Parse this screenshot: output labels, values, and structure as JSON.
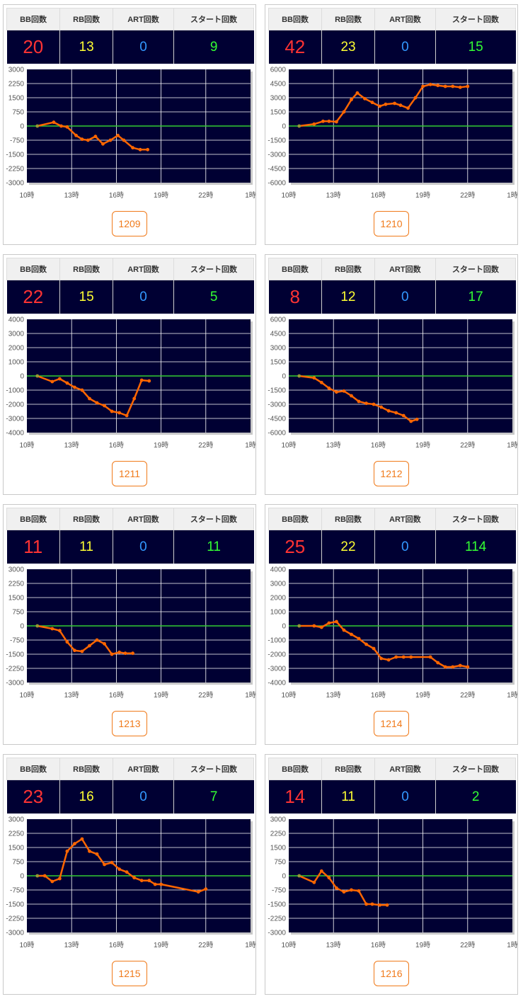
{
  "headers": {
    "bb": "BB回数",
    "rb": "RB回数",
    "art": "ART回数",
    "start": "スタート回数"
  },
  "x_ticks": [
    "10時",
    "13時",
    "16時",
    "19時",
    "22時",
    "1時"
  ],
  "colors": {
    "header_bg": "#f0f0f0",
    "value_bg": "#000033",
    "plot_bg": "#000033",
    "bb": "#ff3333",
    "rb": "#ffff33",
    "art": "#3399ff",
    "start": "#33ff33",
    "line": "#ff6600",
    "zero": "#33cc33",
    "button": "#f07a1a"
  },
  "machines": [
    {
      "id": "1209",
      "bb": "20",
      "rb": "13",
      "art": "0",
      "start": "9",
      "chart_data": {
        "type": "line",
        "y_ticks": [
          "3000",
          "2250",
          "1500",
          "750",
          "0",
          "-750",
          "-1500",
          "-2250",
          "-3000"
        ],
        "ylim": [
          -3000,
          3000
        ],
        "xlim": [
          10,
          25
        ],
        "x": [
          10.7,
          11.8,
          12.3,
          12.7,
          13.3,
          13.7,
          14.1,
          14.6,
          15.1,
          15.6,
          16.1,
          16.5,
          17.1,
          17.6,
          18.1
        ],
        "y": [
          0,
          200,
          0,
          -50,
          -500,
          -700,
          -750,
          -550,
          -950,
          -750,
          -500,
          -750,
          -1150,
          -1250,
          -1250
        ]
      }
    },
    {
      "id": "1210",
      "bb": "42",
      "rb": "23",
      "art": "0",
      "start": "15",
      "chart_data": {
        "type": "line",
        "y_ticks": [
          "6000",
          "4500",
          "3000",
          "1500",
          "0",
          "-1500",
          "-3000",
          "-4500",
          "-6000"
        ],
        "ylim": [
          -6000,
          6000
        ],
        "xlim": [
          10,
          25
        ],
        "x": [
          10.7,
          11.7,
          12.3,
          12.7,
          13.2,
          13.7,
          14.2,
          14.6,
          15.1,
          15.6,
          16.1,
          16.5,
          17.1,
          17.5,
          18.0,
          18.5,
          19.0,
          19.5,
          20.0,
          20.5,
          21.0,
          21.5,
          22.0
        ],
        "y": [
          0,
          200,
          500,
          500,
          450,
          1500,
          2800,
          3500,
          2900,
          2500,
          2100,
          2300,
          2400,
          2200,
          1900,
          3000,
          4200,
          4400,
          4300,
          4200,
          4200,
          4100,
          4200
        ]
      }
    },
    {
      "id": "1211",
      "bb": "22",
      "rb": "15",
      "art": "0",
      "start": "5",
      "chart_data": {
        "type": "line",
        "y_ticks": [
          "4000",
          "3000",
          "2000",
          "1000",
          "0",
          "-1000",
          "-2000",
          "-3000",
          "-4000"
        ],
        "ylim": [
          -4000,
          4000
        ],
        "xlim": [
          10,
          25
        ],
        "x": [
          10.7,
          11.7,
          12.2,
          12.7,
          13.2,
          13.7,
          14.2,
          14.7,
          15.2,
          15.7,
          16.2,
          16.7,
          17.2,
          17.7,
          18.2
        ],
        "y": [
          0,
          -400,
          -200,
          -500,
          -800,
          -1000,
          -1600,
          -1900,
          -2100,
          -2500,
          -2600,
          -2800,
          -1600,
          -300,
          -350
        ]
      }
    },
    {
      "id": "1212",
      "bb": "8",
      "rb": "12",
      "art": "0",
      "start": "17",
      "chart_data": {
        "type": "line",
        "y_ticks": [
          "6000",
          "4500",
          "3000",
          "1500",
          "0",
          "-1500",
          "-3000",
          "-4500",
          "-6000"
        ],
        "ylim": [
          -6000,
          6000
        ],
        "xlim": [
          10,
          25
        ],
        "x": [
          10.7,
          11.7,
          12.2,
          12.7,
          13.2,
          13.7,
          14.2,
          14.7,
          15.2,
          15.7,
          16.2,
          16.7,
          17.2,
          17.7,
          18.2,
          18.6
        ],
        "y": [
          0,
          -200,
          -700,
          -1300,
          -1700,
          -1600,
          -2100,
          -2700,
          -2900,
          -3000,
          -3300,
          -3700,
          -3900,
          -4200,
          -4800,
          -4600
        ]
      }
    },
    {
      "id": "1213",
      "bb": "11",
      "rb": "11",
      "art": "0",
      "start": "11",
      "chart_data": {
        "type": "line",
        "y_ticks": [
          "3000",
          "2250",
          "1500",
          "750",
          "0",
          "-750",
          "-1500",
          "-2250",
          "-3000"
        ],
        "ylim": [
          -3000,
          3000
        ],
        "xlim": [
          10,
          25
        ],
        "x": [
          10.7,
          11.7,
          12.2,
          12.7,
          13.2,
          13.7,
          14.2,
          14.7,
          15.2,
          15.7,
          16.2,
          16.6,
          17.1
        ],
        "y": [
          0,
          -150,
          -250,
          -850,
          -1300,
          -1350,
          -1050,
          -750,
          -950,
          -1500,
          -1400,
          -1450,
          -1450
        ]
      }
    },
    {
      "id": "1214",
      "bb": "25",
      "rb": "22",
      "art": "0",
      "start": "114",
      "chart_data": {
        "type": "line",
        "y_ticks": [
          "4000",
          "3000",
          "2000",
          "1000",
          "0",
          "-1000",
          "-2000",
          "-3000",
          "-4000"
        ],
        "ylim": [
          -4000,
          4000
        ],
        "xlim": [
          10,
          25
        ],
        "x": [
          10.7,
          11.7,
          12.2,
          12.7,
          13.2,
          13.7,
          14.2,
          14.7,
          15.2,
          15.7,
          16.2,
          16.7,
          17.2,
          17.7,
          18.2,
          19.5,
          20.0,
          20.5,
          21.0,
          21.5,
          22.0
        ],
        "y": [
          0,
          0,
          -100,
          200,
          300,
          -300,
          -600,
          -900,
          -1300,
          -1600,
          -2300,
          -2400,
          -2200,
          -2200,
          -2200,
          -2200,
          -2600,
          -2900,
          -2900,
          -2800,
          -2900
        ]
      }
    },
    {
      "id": "1215",
      "bb": "23",
      "rb": "16",
      "art": "0",
      "start": "7",
      "chart_data": {
        "type": "line",
        "y_ticks": [
          "3000",
          "2250",
          "1500",
          "750",
          "0",
          "-750",
          "-1500",
          "-2250",
          "-3000"
        ],
        "ylim": [
          -3000,
          3000
        ],
        "xlim": [
          10,
          25
        ],
        "x": [
          10.7,
          11.2,
          11.7,
          12.2,
          12.7,
          13.2,
          13.7,
          14.2,
          14.7,
          15.2,
          15.7,
          16.2,
          16.7,
          17.2,
          17.7,
          18.2,
          18.6,
          19.0,
          21.5,
          22.0
        ],
        "y": [
          0,
          0,
          -300,
          -150,
          1300,
          1700,
          1950,
          1300,
          1150,
          600,
          700,
          350,
          200,
          -100,
          -250,
          -250,
          -450,
          -450,
          -850,
          -700
        ]
      }
    },
    {
      "id": "1216",
      "bb": "14",
      "rb": "11",
      "art": "0",
      "start": "2",
      "chart_data": {
        "type": "line",
        "y_ticks": [
          "3000",
          "2250",
          "1500",
          "750",
          "0",
          "-750",
          "-1500",
          "-2250",
          "-3000"
        ],
        "ylim": [
          -3000,
          3000
        ],
        "xlim": [
          10,
          25
        ],
        "x": [
          10.7,
          11.7,
          12.2,
          12.7,
          13.2,
          13.7,
          14.2,
          14.7,
          15.2,
          15.6,
          16.1,
          16.6
        ],
        "y": [
          0,
          -350,
          250,
          -100,
          -650,
          -850,
          -750,
          -800,
          -1500,
          -1500,
          -1550,
          -1550
        ]
      }
    }
  ]
}
